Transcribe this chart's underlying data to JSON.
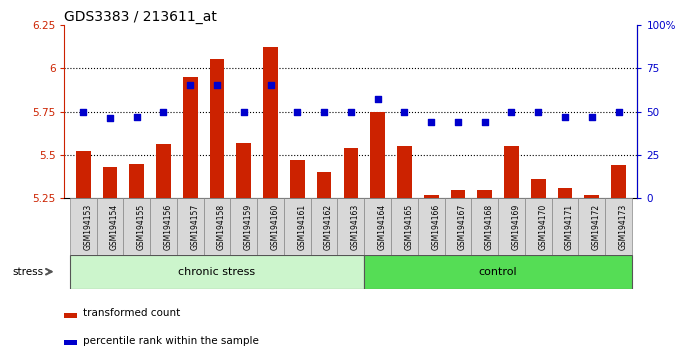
{
  "title": "GDS3383 / 213611_at",
  "samples": [
    "GSM194153",
    "GSM194154",
    "GSM194155",
    "GSM194156",
    "GSM194157",
    "GSM194158",
    "GSM194159",
    "GSM194160",
    "GSM194161",
    "GSM194162",
    "GSM194163",
    "GSM194164",
    "GSM194165",
    "GSM194166",
    "GSM194167",
    "GSM194168",
    "GSM194169",
    "GSM194170",
    "GSM194171",
    "GSM194172",
    "GSM194173"
  ],
  "bar_values": [
    5.52,
    5.43,
    5.45,
    5.56,
    5.95,
    6.05,
    5.57,
    6.12,
    5.47,
    5.4,
    5.54,
    5.75,
    5.55,
    5.27,
    5.3,
    5.3,
    5.55,
    5.36,
    5.31,
    5.27,
    5.44
  ],
  "dot_values": [
    50,
    46,
    47,
    50,
    65,
    65,
    50,
    65,
    50,
    50,
    50,
    57,
    50,
    44,
    44,
    44,
    50,
    50,
    47,
    47,
    50
  ],
  "bar_color": "#cc2200",
  "dot_color": "#0000cc",
  "bar_bottom": 5.25,
  "ylim_left": [
    5.25,
    6.25
  ],
  "ylim_right": [
    0,
    100
  ],
  "yticks_left": [
    5.25,
    5.5,
    5.75,
    6.0,
    6.25
  ],
  "ytick_labels_left": [
    "5.25",
    "5.5",
    "5.75",
    "6",
    "6.25"
  ],
  "yticks_right": [
    0,
    25,
    50,
    75,
    100
  ],
  "ytick_labels_right": [
    "0",
    "25",
    "50",
    "75",
    "100%"
  ],
  "hlines": [
    5.5,
    5.75,
    6.0
  ],
  "chronic_stress_label": "chronic stress",
  "control_label": "control",
  "stress_label": "stress",
  "legend_bar_label": "transformed count",
  "legend_dot_label": "percentile rank within the sample",
  "chronic_stress_color": "#ccf5cc",
  "control_color": "#55dd55",
  "label_box_color": "#d8d8d8",
  "bg_color": "#ffffff"
}
